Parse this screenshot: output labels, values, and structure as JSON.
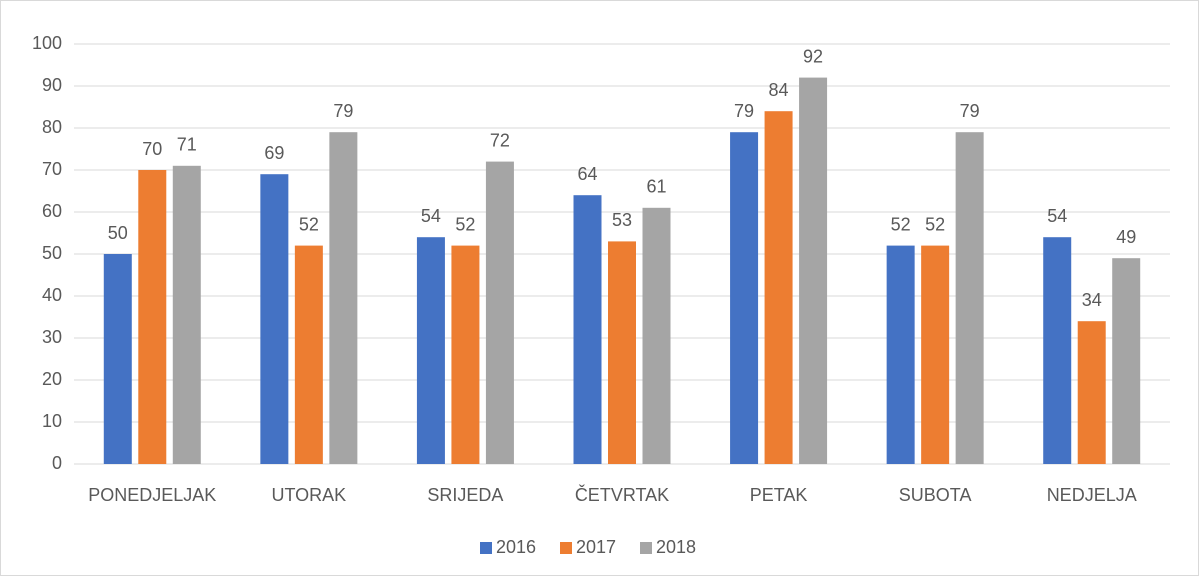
{
  "chart_data": {
    "type": "bar",
    "categories": [
      "PONEDJELJAK",
      "UTORAK",
      "SRIJEDA",
      "ČETVRTAK",
      "PETAK",
      "SUBOTA",
      "NEDJELJA"
    ],
    "series": [
      {
        "name": "2016",
        "color": "#4472c4",
        "values": [
          50,
          69,
          54,
          64,
          79,
          52,
          54
        ]
      },
      {
        "name": "2017",
        "color": "#ed7d31",
        "values": [
          70,
          52,
          52,
          53,
          84,
          52,
          34
        ]
      },
      {
        "name": "2018",
        "color": "#a5a5a5",
        "values": [
          71,
          79,
          72,
          61,
          92,
          79,
          49
        ]
      }
    ],
    "ylim": [
      0,
      100
    ],
    "yticks": [
      0,
      10,
      20,
      30,
      40,
      50,
      60,
      70,
      80,
      90,
      100
    ],
    "grid": true,
    "legend": "bottom"
  }
}
